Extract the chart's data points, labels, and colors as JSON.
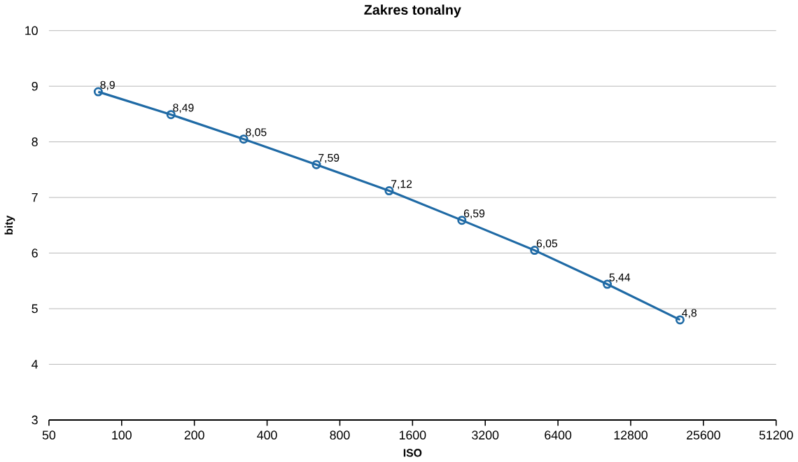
{
  "chart_data": {
    "type": "line",
    "title": "Zakres tonalny",
    "xlabel": "ISO",
    "ylabel": "bity",
    "x": [
      80,
      160,
      320,
      640,
      1280,
      2560,
      5120,
      10240,
      20480
    ],
    "series": [
      {
        "color": "#1f6aa5",
        "values": [
          8.9,
          8.49,
          8.05,
          7.59,
          7.12,
          6.59,
          6.05,
          5.44,
          4.8
        ],
        "value_labels": [
          "8,9",
          "8,49",
          "8,05",
          "7,59",
          "7,12",
          "6,59",
          "6,05",
          "5,44",
          "4,8"
        ]
      }
    ],
    "log": "x",
    "xlim": [
      50,
      51200
    ],
    "xticks": [
      50,
      100,
      200,
      400,
      800,
      1600,
      3200,
      6400,
      12800,
      25600,
      51200
    ],
    "ylim": [
      3,
      10
    ],
    "yticks": [
      3,
      4,
      5,
      6,
      7,
      8,
      9,
      10
    ],
    "grid": "y",
    "marker": "circle",
    "line_style": "solid"
  }
}
